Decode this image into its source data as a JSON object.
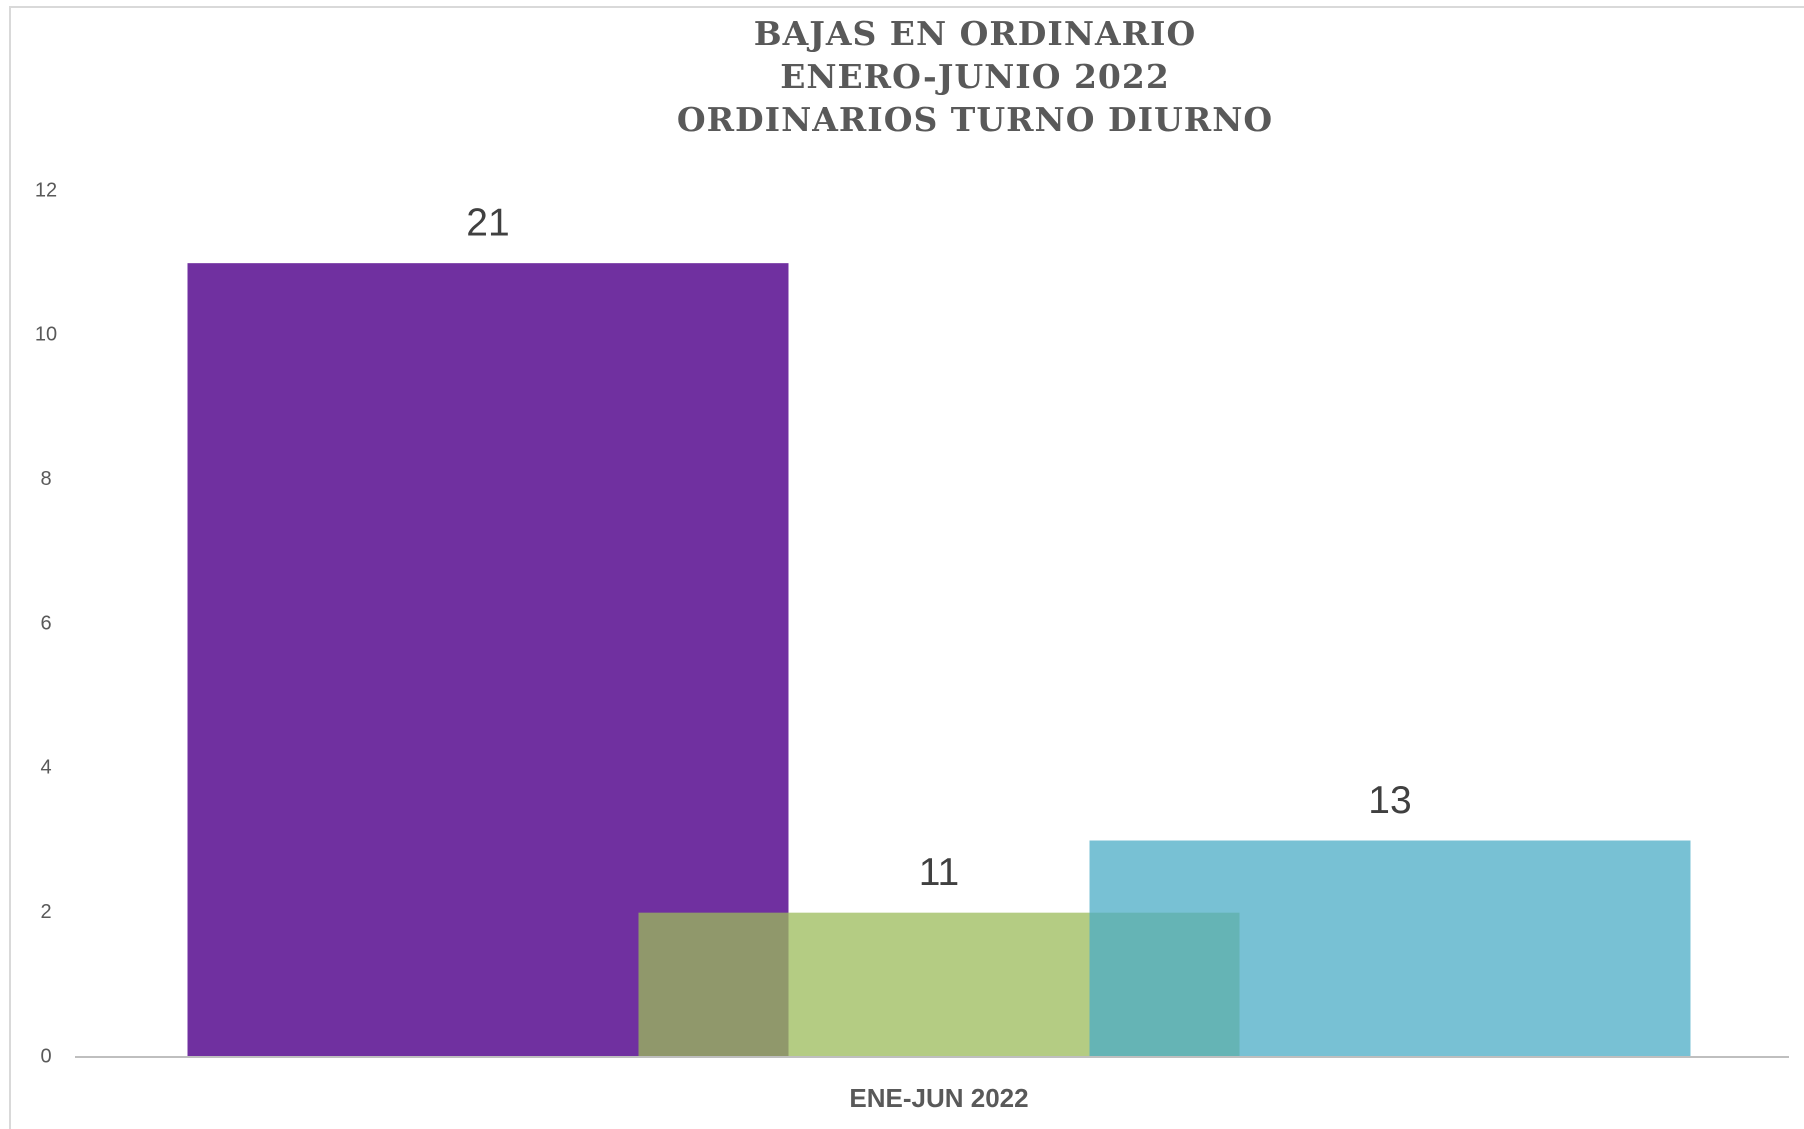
{
  "chart_data": {
    "type": "bar",
    "title": [
      "BAJAS  EN ORDINARIO",
      "ENERO-JUNIO 2022",
      "ORDINARIOS TURNO DIURNO"
    ],
    "categories": [
      "ENE-JUN 2022"
    ],
    "series": [
      {
        "color": "#7030a0",
        "values": [
          11
        ]
      },
      {
        "color": "#9bbb59",
        "values": [
          2
        ]
      },
      {
        "color": "#4bacc6",
        "values": [
          3
        ]
      }
    ],
    "annotations": [
      "21",
      "11",
      "13"
    ],
    "ylim": [
      0,
      12
    ],
    "yticks": [
      0,
      2,
      4,
      6,
      8,
      10,
      12
    ],
    "grid": false
  }
}
